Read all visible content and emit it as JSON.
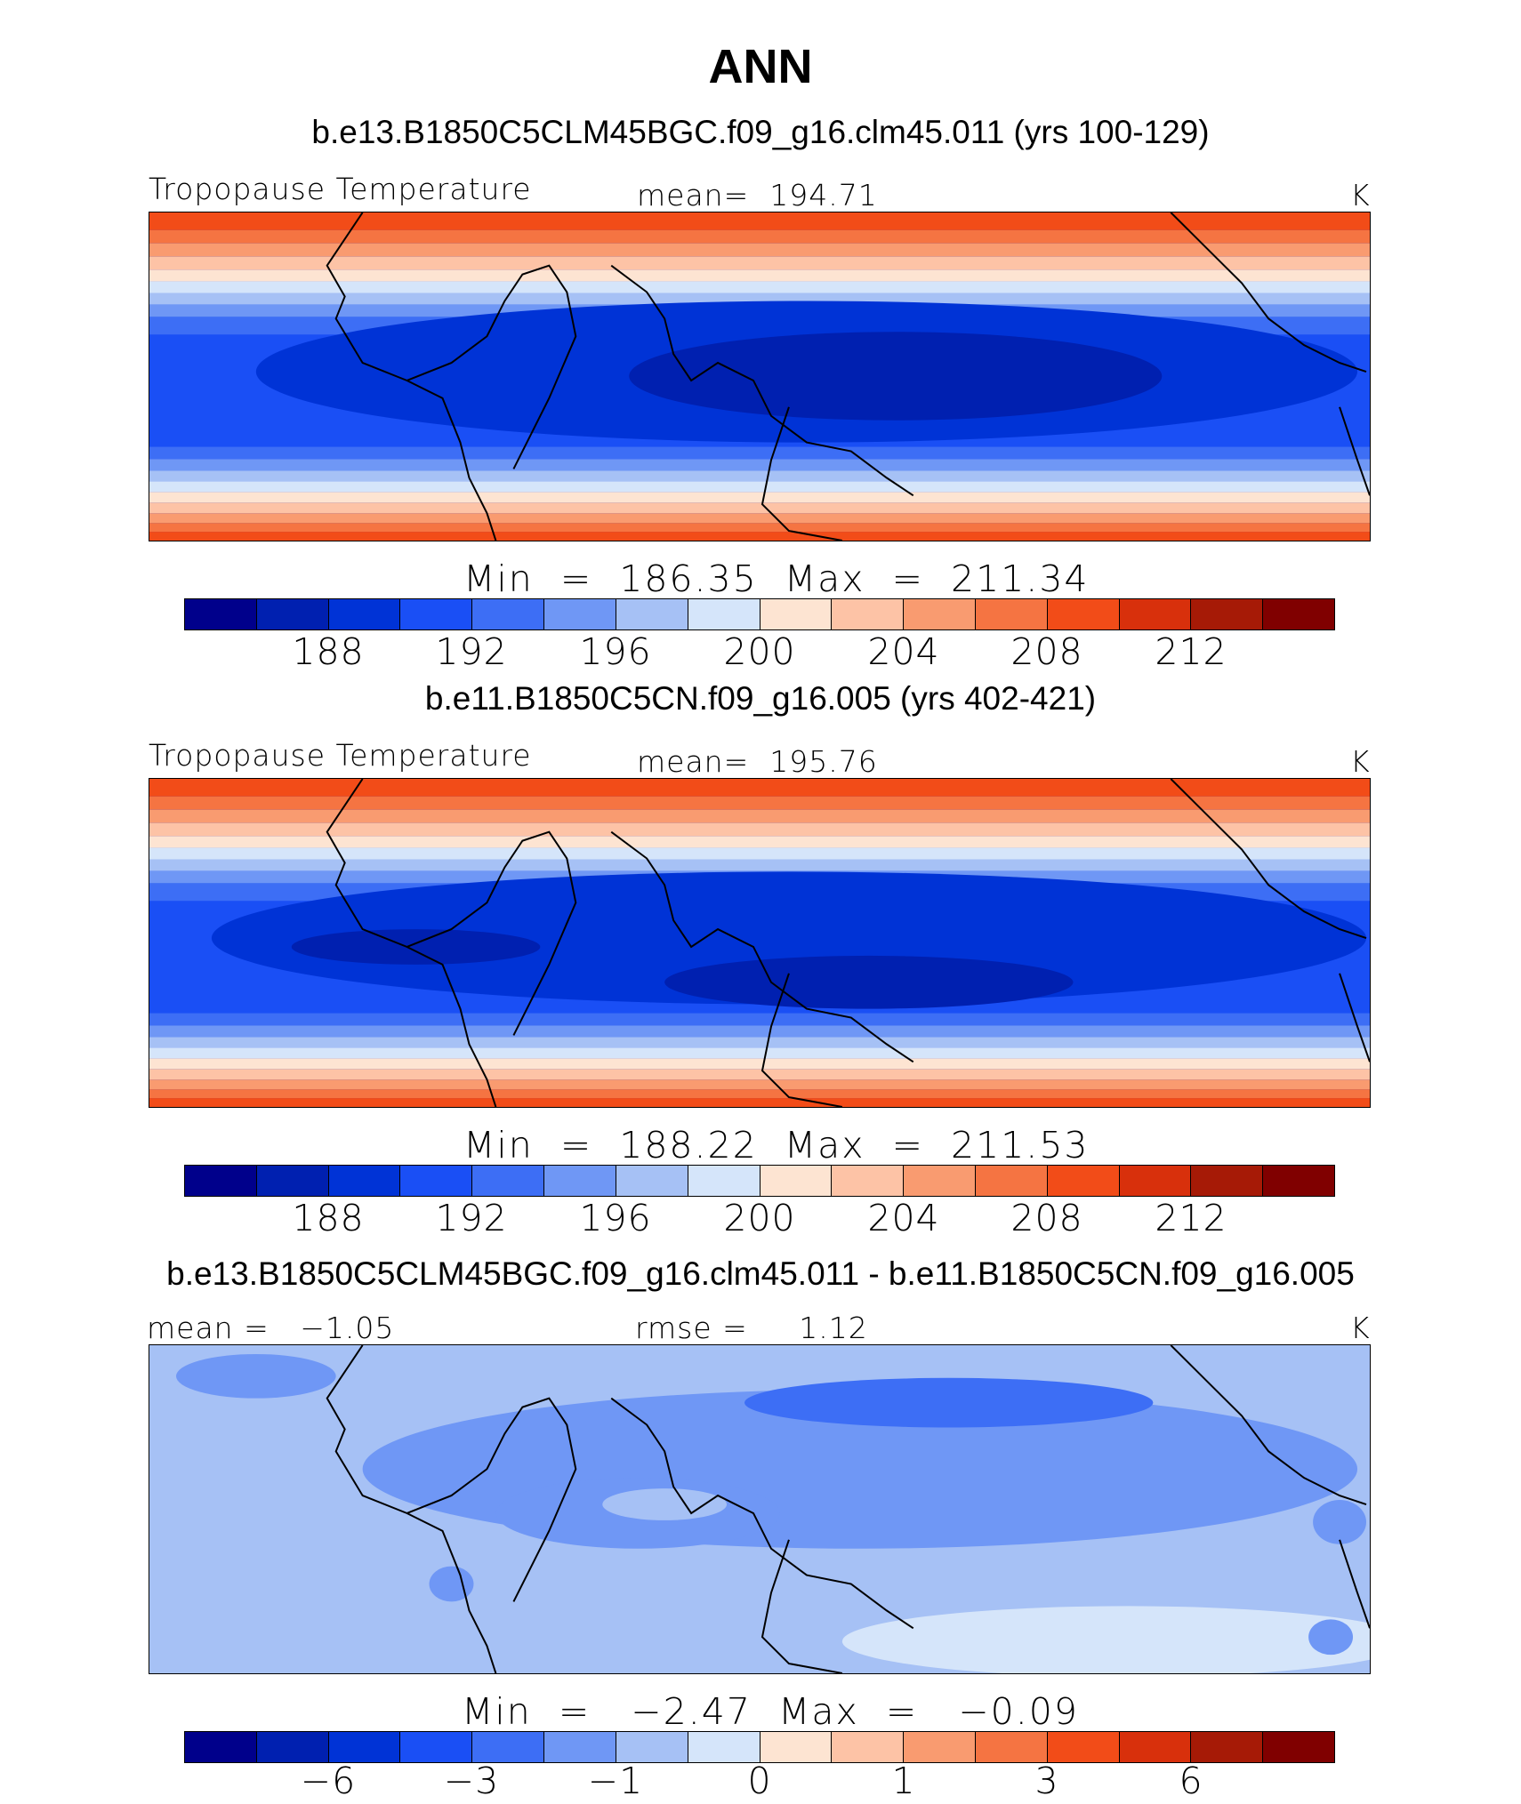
{
  "title": "ANN",
  "palette": [
    "#00008b",
    "#0020b0",
    "#0033d6",
    "#1a4ff5",
    "#3d6ef5",
    "#6f97f5",
    "#a6c1f5",
    "#d5e5fa",
    "#fde4d2",
    "#fdc3a6",
    "#f99b70",
    "#f57442",
    "#f24c18",
    "#d8300c",
    "#a61a06",
    "#800000"
  ],
  "coastline_color": "#000000",
  "panels": [
    {
      "case_title": "b.e13.B1850C5CLM45BGC.f09_g16.clm45.011 (yrs 100-129)",
      "left_label": "Tropopause Temperature",
      "center_label": "mean=  194.71",
      "units": "K",
      "min_label": "Min",
      "min_value": "186.35",
      "max_label": "Max",
      "max_value": "211.34",
      "ticks": [
        "188",
        "192",
        "196",
        "200",
        "204",
        "208",
        "212"
      ],
      "field": {
        "type": "tropopause_temperature",
        "min": 186.35,
        "max": 211.34,
        "mean": 194.71
      }
    },
    {
      "case_title": "b.e11.B1850C5CN.f09_g16.005 (yrs 402-421)",
      "left_label": "Tropopause Temperature",
      "center_label": "mean=  195.76",
      "units": "K",
      "min_label": "Min",
      "min_value": "188.22",
      "max_label": "Max",
      "max_value": "211.53",
      "ticks": [
        "188",
        "192",
        "196",
        "200",
        "204",
        "208",
        "212"
      ],
      "field": {
        "type": "tropopause_temperature",
        "min": 188.22,
        "max": 211.53,
        "mean": 195.76
      }
    },
    {
      "case_title": "b.e13.B1850C5CLM45BGC.f09_g16.clm45.011 - b.e11.B1850C5CN.f09_g16.005",
      "left_label": "mean =   −1.05",
      "center_label": "rmse =     1.12",
      "units": "K",
      "min_label": "Min",
      "min_value": "−2.47",
      "max_label": "Max",
      "max_value": "−0.09",
      "ticks": [
        "−6",
        "−3",
        "−1",
        "0",
        "1",
        "3",
        "6"
      ],
      "field": {
        "type": "difference",
        "min": -2.47,
        "max": -0.09,
        "mean": -1.05,
        "rmse": 1.12
      }
    }
  ]
}
